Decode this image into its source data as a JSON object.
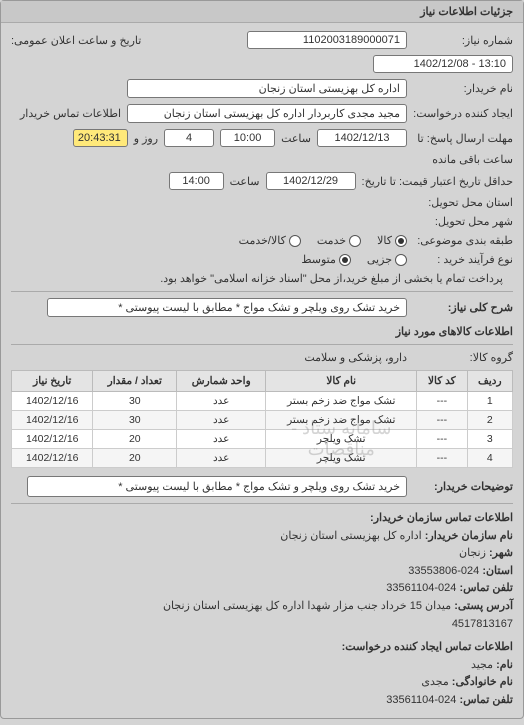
{
  "panel_title": "جزئیات اطلاعات نیاز",
  "fields": {
    "request_no_label": "شماره نیاز:",
    "request_no": "1102003189000071",
    "public_datetime_label": "تاریخ و ساعت اعلان عمومی:",
    "public_datetime": "13:10 - 1402/12/08",
    "buyer_name_label": "نام خریدار:",
    "buyer_name": "اداره کل بهزیستی استان زنجان",
    "requester_label": "ایجاد کننده درخواست:",
    "requester": "مجید مجدی کاربردار اداره کل بهزیستی استان زنجان",
    "buyer_contact_label": "اطلاعات تماس خریدار",
    "deadline_send_label": "مهلت ارسال پاسخ: تا",
    "deadline_send_date": "1402/12/13",
    "deadline_send_time_label": "ساعت",
    "deadline_send_time": "10:00",
    "days_remain": "4",
    "days_remain_label": "روز و",
    "time_remain": "20:43:31",
    "time_remain_label": "ساعت باقی مانده",
    "valid_until_label": "حداقل تاریخ اعتبار قیمت: تا تاریخ:",
    "valid_until_date": "1402/12/29",
    "valid_until_time_label": "ساعت",
    "valid_until_time": "14:00",
    "delivery_province_label": "استان محل تحویل:",
    "delivery_city_label": "شهر محل تحویل:",
    "budget_class_label": "طبقه بندی موضوعی:",
    "radio_goods": "کالا",
    "radio_service": "خدمت",
    "radio_both": "کالا/خدمت",
    "process_type_label": "نوع فرآیند خرید :",
    "radio_minor": "جزیی",
    "radio_mid": "متوسط",
    "process_note": "پرداخت تمام یا بخشی از مبلغ خرید،از محل \"اسناد خزانه اسلامی\" خواهد بود.",
    "need_desc_label": "شرح کلی نیاز:",
    "need_desc": "خرید تشک روی ویلچر و تشک مواج * مطابق با لیست پیوستی *",
    "items_section": "اطلاعات کالاهای مورد نیاز",
    "group_label": "گروه کالا:",
    "group_value": "دارو، پزشکی و سلامت",
    "buyer_notes_label": "توضیحات خریدار:",
    "buyer_notes": "خرید تشک روی ویلچر و تشک مواج * مطابق با لیست پیوستی *",
    "contact_org_title": "اطلاعات تماس سازمان خریدار:",
    "contact_org_name_label": "نام سازمان خریدار:",
    "contact_org_name": "اداره کل بهزیستی استان زنجان",
    "contact_city_label": "شهر:",
    "contact_city": "زنجان",
    "contact_province_label": "استان:",
    "contact_phone_label": "تلفن تماس:",
    "contact_phone": "024-33553806",
    "contact_phone2": "024-33561104",
    "contact_address_label": "آدرس پستی:",
    "contact_address": "میدان 15 خرداد جنب مزار شهدا اداره کل بهزیستی استان زنجان",
    "contact_postal_label": "",
    "contact_postal": "4517813167",
    "requester_contact_title": "اطلاعات تماس ایجاد کننده درخواست:",
    "req_name_label": "نام:",
    "req_name": "مجید",
    "req_family_label": "نام خانوادگی:",
    "req_family": "مجدی",
    "req_phone_label": "تلفن تماس:",
    "req_phone": "024-33561104"
  },
  "table": {
    "columns": [
      "ردیف",
      "کد کالا",
      "نام کالا",
      "واحد شمارش",
      "تعداد / مقدار",
      "تاریخ نیاز"
    ],
    "rows": [
      [
        "1",
        "---",
        "تشک مواج ضد زخم بستر",
        "عدد",
        "30",
        "1402/12/16"
      ],
      [
        "2",
        "---",
        "تشک مواج ضد زخم بستر",
        "عدد",
        "30",
        "1402/12/16"
      ],
      [
        "3",
        "---",
        "تشک ویلچر",
        "عدد",
        "20",
        "1402/12/16"
      ],
      [
        "4",
        "---",
        "تشک ویلچر",
        "عدد",
        "20",
        "1402/12/16"
      ]
    ],
    "watermark": "سامانه ستاد - مناقصات"
  }
}
